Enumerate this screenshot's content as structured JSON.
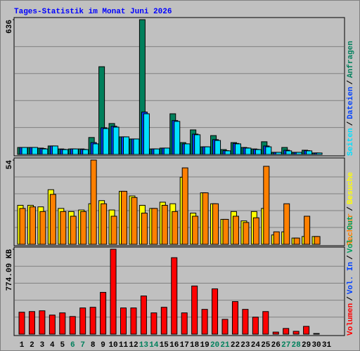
{
  "chart_data": [
    {
      "type": "bar",
      "title": "Tages-Statistik im Monat Juni 2026",
      "separator": "/",
      "ylim": [
        0,
        636
      ],
      "yticks": [
        636
      ],
      "series": [
        {
          "name": "Anfragen",
          "color": "#00805c",
          "values": [
            33,
            33,
            30,
            40,
            26,
            26,
            26,
            80,
            414,
            146,
            83,
            73,
            636,
            26,
            30,
            192,
            56,
            116,
            36,
            89,
            23,
            56,
            33,
            26,
            60,
            10,
            33,
            10,
            20,
            7,
            0
          ]
        },
        {
          "name": "Dateien",
          "color": "#0040ff",
          "values": [
            33,
            33,
            28,
            40,
            24,
            26,
            24,
            56,
            126,
            133,
            83,
            73,
            200,
            26,
            30,
            160,
            50,
            96,
            36,
            70,
            18,
            52,
            31,
            24,
            40,
            10,
            20,
            10,
            18,
            7,
            0
          ]
        },
        {
          "name": "Seiten",
          "color": "#00e0ff",
          "values": [
            33,
            33,
            26,
            40,
            23,
            26,
            23,
            50,
            122,
            129,
            83,
            73,
            192,
            26,
            30,
            156,
            50,
            93,
            36,
            66,
            17,
            50,
            30,
            23,
            36,
            10,
            17,
            10,
            17,
            7,
            0
          ]
        }
      ]
    },
    {
      "type": "bar",
      "separator": "/",
      "ylim": [
        0,
        54
      ],
      "yticks": [
        54
      ],
      "series": [
        {
          "name": "Besuche",
          "color": "#ffff00",
          "values": [
            25,
            25,
            24,
            35,
            23,
            21,
            22,
            26,
            28,
            22,
            34,
            31,
            25,
            23,
            27,
            26,
            43,
            20,
            33,
            26,
            16,
            21,
            15,
            21,
            23,
            6,
            8,
            4,
            5,
            5,
            0
          ]
        },
        {
          "name": "Rechner",
          "color": "#ff8000",
          "values": [
            23,
            24,
            21,
            32,
            21,
            18,
            21,
            54,
            26,
            18,
            34,
            30,
            20,
            23,
            25,
            21,
            49,
            18,
            33,
            26,
            16,
            18,
            14,
            17,
            50,
            8,
            26,
            4,
            18,
            5,
            0
          ]
        }
      ]
    },
    {
      "type": "bar",
      "separator": "/",
      "ylim": [
        0,
        774.09
      ],
      "yticks": [
        {
          "value": 774.09,
          "label": "774.09 KB"
        }
      ],
      "categories": [
        "1",
        "2",
        "3",
        "4",
        "5",
        "6",
        "7",
        "8",
        "9",
        "10",
        "11",
        "12",
        "13",
        "14",
        "15",
        "16",
        "17",
        "18",
        "19",
        "20",
        "21",
        "22",
        "23",
        "24",
        "25",
        "26",
        "27",
        "28",
        "29",
        "30",
        "31"
      ],
      "category_colors": [
        "#000000",
        "#000000",
        "#000000",
        "#000000",
        "#000000",
        "#00805c",
        "#00805c",
        "#000000",
        "#000000",
        "#000000",
        "#000000",
        "#000000",
        "#00805c",
        "#00805c",
        "#000000",
        "#000000",
        "#000000",
        "#000000",
        "#000000",
        "#00805c",
        "#00805c",
        "#000000",
        "#000000",
        "#000000",
        "#000000",
        "#000000",
        "#00805c",
        "#00805c",
        "#000000",
        "#000000",
        "#000000"
      ],
      "series": [
        {
          "name": "Volumen",
          "color": "#ff0000",
          "values": [
            200,
            206,
            213,
            174,
            194,
            161,
            239,
            245,
            381,
            774.09,
            239,
            239,
            348,
            194,
            245,
            697,
            194,
            439,
            226,
            413,
            135,
            297,
            226,
            155,
            206,
            19,
            52,
            26,
            71,
            6,
            0
          ]
        }
      ],
      "extra_legend": [
        {
          "name": "Vol. In",
          "color": "#0040ff"
        },
        {
          "name": "Vol. Out",
          "color": "#00a060"
        }
      ]
    }
  ]
}
